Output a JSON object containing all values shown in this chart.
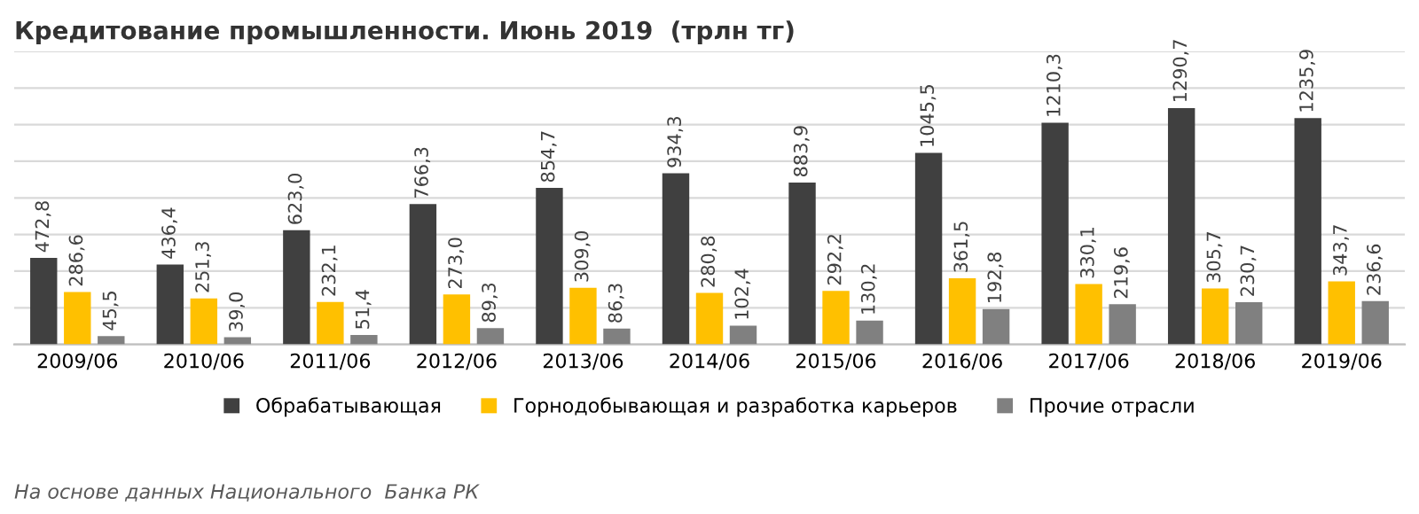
{
  "chart_data": {
    "type": "bar",
    "title": "Кредитование промышленности. Июнь 2019  (трлн тг)",
    "categories": [
      "2009/06",
      "2010/06",
      "2011/06",
      "2012/06",
      "2013/06",
      "2014/06",
      "2015/06",
      "2016/06",
      "2017/06",
      "2018/06",
      "2019/06"
    ],
    "series": [
      {
        "name": "Обрабатывающая",
        "color": "#404040",
        "values": [
          472.8,
          436.4,
          623.0,
          766.3,
          854.7,
          934.3,
          883.9,
          1045.5,
          1210.3,
          1290.7,
          1235.9
        ],
        "value_labels": [
          "472,8",
          "436,4",
          "623,0",
          "766,3",
          "854,7",
          "934,3",
          "883,9",
          "1045,5",
          "1210,3",
          "1290,7",
          "1235,9"
        ]
      },
      {
        "name": "Горнодобывающая и разработка карьеров",
        "color": "#ffc000",
        "values": [
          286.6,
          251.3,
          232.1,
          273.0,
          309.0,
          280.8,
          292.2,
          361.5,
          330.1,
          305.7,
          343.7
        ],
        "value_labels": [
          "286,6",
          "251,3",
          "232,1",
          "273,0",
          "309,0",
          "280,8",
          "292,2",
          "361,5",
          "330,1",
          "305,7",
          "343,7"
        ]
      },
      {
        "name": "Прочие отрасли",
        "color": "#808080",
        "values": [
          45.5,
          39.0,
          51.4,
          89.3,
          86.3,
          102.4,
          130.2,
          192.8,
          219.6,
          230.7,
          236.6
        ],
        "value_labels": [
          "45,5",
          "39,0",
          "51,4",
          "89,3",
          "86,3",
          "102,4",
          "130,2",
          "192,8",
          "219,6",
          "230,7",
          "236,6"
        ]
      }
    ],
    "ylim": [
      0,
      1600
    ],
    "yticks": [
      {
        "value": 0,
        "label": null
      },
      {
        "value": 200,
        "label": null
      },
      {
        "value": 400,
        "label": null
      },
      {
        "value": 600,
        "label": null
      },
      {
        "value": 800,
        "label": null
      },
      {
        "value": 1000,
        "label": null
      },
      {
        "value": 1200,
        "label": null
      },
      {
        "value": 1400,
        "label": null
      },
      {
        "value": 1600,
        "label": null
      }
    ],
    "tick_labels": "x",
    "grid": "y",
    "legend": "bottom",
    "annotations": [
      "На основе данных Национального  Банка РК"
    ]
  }
}
